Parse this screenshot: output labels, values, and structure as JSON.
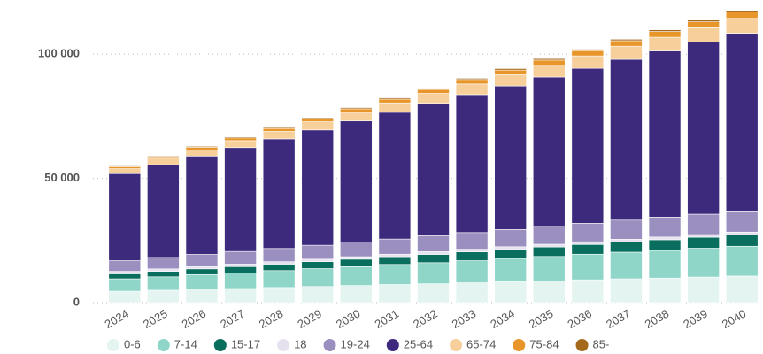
{
  "chart_data": {
    "type": "stacked_bar",
    "categories": [
      "2024",
      "2025",
      "2026",
      "2027",
      "2028",
      "2029",
      "2030",
      "2031",
      "2032",
      "2033",
      "2034",
      "2035",
      "2036",
      "2037",
      "2038",
      "2039",
      "2040"
    ],
    "series": [
      {
        "name": "0-6",
        "color": "#e3f4f1",
        "values": [
          4600,
          5000,
          5400,
          5700,
          6100,
          6500,
          6900,
          7300,
          7600,
          8000,
          8400,
          8800,
          9200,
          9600,
          9900,
          10300,
          10700
        ]
      },
      {
        "name": "7-14",
        "color": "#8fd6c9",
        "values": [
          5000,
          5400,
          5900,
          6300,
          6800,
          7200,
          7600,
          8100,
          8500,
          8900,
          9400,
          9800,
          10300,
          10700,
          11100,
          11600,
          12000
        ]
      },
      {
        "name": "15-17",
        "color": "#0a6e5e",
        "values": [
          2000,
          2200,
          2300,
          2500,
          2600,
          2800,
          3000,
          3100,
          3300,
          3500,
          3600,
          3800,
          3900,
          4100,
          4300,
          4400,
          4600
        ]
      },
      {
        "name": "18",
        "color": "#e6e1ef",
        "values": [
          1000,
          1000,
          1000,
          1000,
          1000,
          1000,
          1000,
          1000,
          1100,
          1100,
          1100,
          1100,
          1100,
          1100,
          1100,
          1100,
          1100
        ]
      },
      {
        "name": "19-24",
        "color": "#9b8fc0",
        "values": [
          4300,
          4600,
          4800,
          5100,
          5300,
          5600,
          5900,
          6100,
          6400,
          6700,
          6900,
          7200,
          7400,
          7700,
          8000,
          8200,
          8500
        ]
      },
      {
        "name": "25-64",
        "color": "#3d2a7d",
        "values": [
          35000,
          37300,
          39600,
          41800,
          44100,
          46400,
          48700,
          51000,
          53300,
          55500,
          57800,
          60100,
          62400,
          64700,
          66900,
          69200,
          71500
        ]
      },
      {
        "name": "65-74",
        "color": "#f7cf9b",
        "values": [
          2000,
          2300,
          2500,
          2800,
          3000,
          3300,
          3500,
          3800,
          4000,
          4300,
          4500,
          4800,
          5000,
          5300,
          5500,
          5800,
          6000
        ]
      },
      {
        "name": "75-84",
        "color": "#e8962a",
        "values": [
          800,
          900,
          1000,
          1100,
          1200,
          1300,
          1400,
          1500,
          1600,
          1800,
          1900,
          2000,
          2100,
          2200,
          2300,
          2400,
          2500
        ]
      },
      {
        "name": "85-",
        "color": "#a5691c",
        "values": [
          300,
          300,
          400,
          400,
          400,
          400,
          500,
          500,
          500,
          500,
          600,
          600,
          600,
          600,
          700,
          700,
          700
        ]
      }
    ],
    "ylim": [
      0,
      120000
    ],
    "yticks": [
      0,
      {
        "value": 50000,
        "label": "50 000"
      },
      {
        "value": 100000,
        "label": "100 000"
      }
    ],
    "grid": true
  }
}
